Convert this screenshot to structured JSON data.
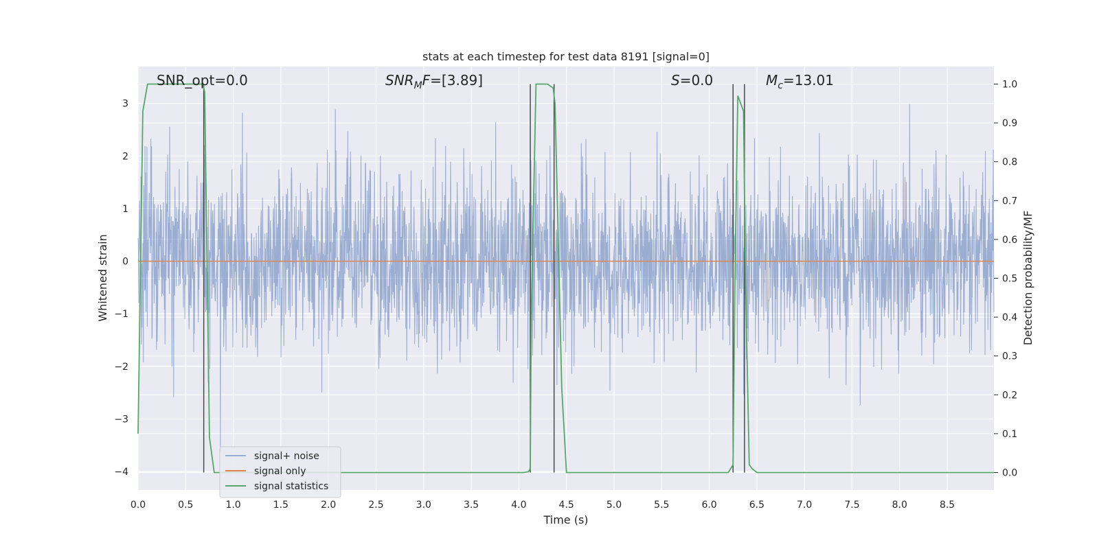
{
  "chart_data": {
    "type": "line",
    "title": "stats at each timestep for test data 8191 [signal=0]",
    "xlabel": "Time (s)",
    "ylabel": "Whitened strain",
    "y2label": "Detection probability/MF",
    "xlim": [
      0,
      8.99
    ],
    "ylim": [
      -4.35,
      3.7
    ],
    "y2lim": [
      -0.045,
      1.045
    ],
    "x_ticks": [
      "0.0",
      "0.5",
      "1.0",
      "1.5",
      "2.0",
      "2.5",
      "3.0",
      "3.5",
      "4.0",
      "4.5",
      "5.0",
      "5.5",
      "6.0",
      "6.5",
      "7.0",
      "7.5",
      "8.0",
      "8.5"
    ],
    "y_ticks": [
      "3",
      "2",
      "1",
      "0",
      "−1",
      "−2",
      "−3",
      "−4"
    ],
    "y2_ticks": [
      "1.0",
      "0.9",
      "0.8",
      "0.7",
      "0.6",
      "0.5",
      "0.4",
      "0.3",
      "0.2",
      "0.1",
      "0.0"
    ],
    "grid": true,
    "legend_placement": "lower-left",
    "annotations": {
      "snr_opt": "SNR_opt=0.0",
      "snr_mf_main": "SNR",
      "snr_mf_sub": "M",
      "snr_mf_italic": "F",
      "snr_mf_value": "=[3.89]",
      "s_symbol": "S",
      "s_value": "=0.0",
      "mc_symbol": "M",
      "mc_sub": "c",
      "mc_value": "=13.01"
    },
    "series": [
      {
        "name": "signal+ noise",
        "color": "#4c72b0",
        "description": "whitened noise, roughly ±1.5 amplitude with spikes to ±3",
        "amplitude_typical": 1.5,
        "amplitude_peak_max": 3.3,
        "amplitude_peak_min": -3.9
      },
      {
        "name": "signal only",
        "color": "#dd8452",
        "x": [
          0,
          8.99
        ],
        "y": [
          0,
          0
        ]
      },
      {
        "name": "signal statistics",
        "color": "#55a868",
        "axis": "y2",
        "x": [
          0,
          0.05,
          0.1,
          0.15,
          0.5,
          0.68,
          0.7,
          0.75,
          0.8,
          0.85,
          4.05,
          4.1,
          4.12,
          4.13,
          4.18,
          4.3,
          4.36,
          4.38,
          4.45,
          4.5,
          4.55,
          6.2,
          6.25,
          6.27,
          6.3,
          6.36,
          6.38,
          6.42,
          6.45,
          6.5,
          6.55,
          6.6,
          6.7,
          8.99
        ],
        "y": [
          0.1,
          0.93,
          1.0,
          1.0,
          1.0,
          1.0,
          0.98,
          0.09,
          0.0,
          0.0,
          0.0,
          0.002,
          0.01,
          0.4,
          1.0,
          1.0,
          0.99,
          0.95,
          0.22,
          0.0,
          0.0,
          0.0,
          0.02,
          0.5,
          0.97,
          0.93,
          0.5,
          0.02,
          0.01,
          0.0,
          0.0,
          0.0,
          0.0,
          0.0
        ]
      }
    ],
    "vertical_lines_x": [
      0.69,
      4.12,
      4.37,
      6.25,
      6.37
    ]
  }
}
